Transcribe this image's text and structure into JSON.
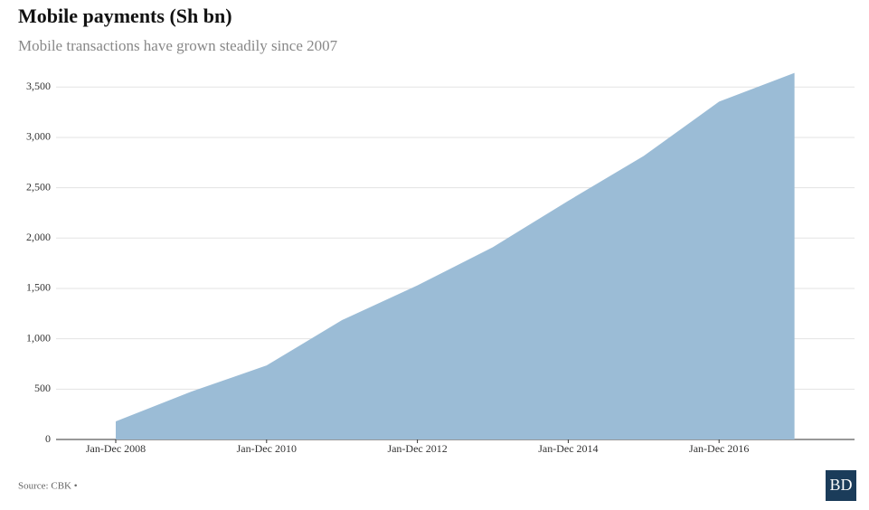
{
  "chart_data": {
    "type": "area",
    "title": "Mobile payments (Sh bn)",
    "subtitle": "Mobile transactions have grown steadily since 2007",
    "categories": [
      "Jan-Dec 2008",
      null,
      "Jan-Dec 2010",
      null,
      "Jan-Dec 2012",
      null,
      "Jan-Dec 2014",
      null,
      "Jan-Dec 2016",
      null
    ],
    "values": [
      180,
      475,
      735,
      1185,
      1530,
      1910,
      2370,
      2815,
      3355,
      3640
    ],
    "color": "#9bbcd6",
    "ylim": [
      0,
      3700
    ],
    "yticks": [
      0,
      500,
      {
        "value": 1000,
        "label": "1,000"
      },
      {
        "value": 1500,
        "label": "1,500"
      },
      {
        "value": 2000,
        "label": "2,000"
      },
      {
        "value": 2500,
        "label": "2,500"
      },
      {
        "value": 3000,
        "label": "3,000"
      },
      {
        "value": 3500,
        "label": "3,500"
      }
    ],
    "grid": true,
    "source": "Source: CBK •",
    "logo": "BD"
  }
}
